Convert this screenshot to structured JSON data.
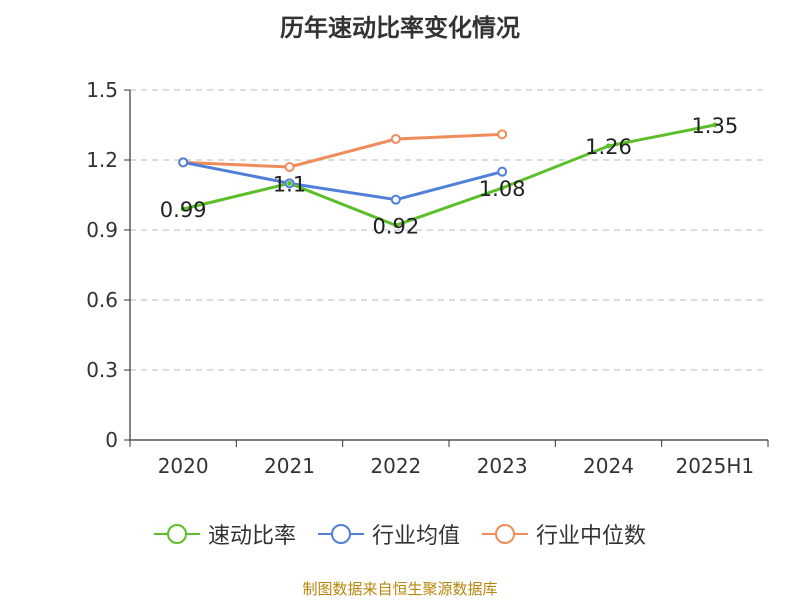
{
  "chart_data": {
    "type": "line",
    "title": "历年速动比率变化情况",
    "categories": [
      "2020",
      "2021",
      "2022",
      "2023",
      "2024",
      "2025H1"
    ],
    "ylim": [
      0,
      1.5
    ],
    "yticks": [
      0,
      0.3,
      0.6,
      0.9,
      1.2,
      1.5
    ],
    "ytick_labels": [
      "0",
      "0.3",
      "0.6",
      "0.9",
      "1.2",
      "1.5"
    ],
    "grid": true,
    "legend_position": "bottom",
    "series": [
      {
        "name": "速动比率",
        "color": "#5cbf2a",
        "values": [
          0.99,
          1.1,
          0.92,
          1.08,
          1.26,
          1.35
        ],
        "labels": [
          "0.99",
          "1.1",
          "0.92",
          "1.08",
          "1.26",
          "1.35"
        ]
      },
      {
        "name": "行业均值",
        "color": "#4f7fd8",
        "values": [
          1.19,
          1.1,
          1.03,
          1.15,
          null,
          null
        ]
      },
      {
        "name": "行业中位数",
        "color": "#f08c5a",
        "values": [
          1.19,
          1.17,
          1.29,
          1.31,
          null,
          null
        ]
      }
    ]
  },
  "footer": {
    "source": "制图数据来自恒生聚源数据库"
  }
}
